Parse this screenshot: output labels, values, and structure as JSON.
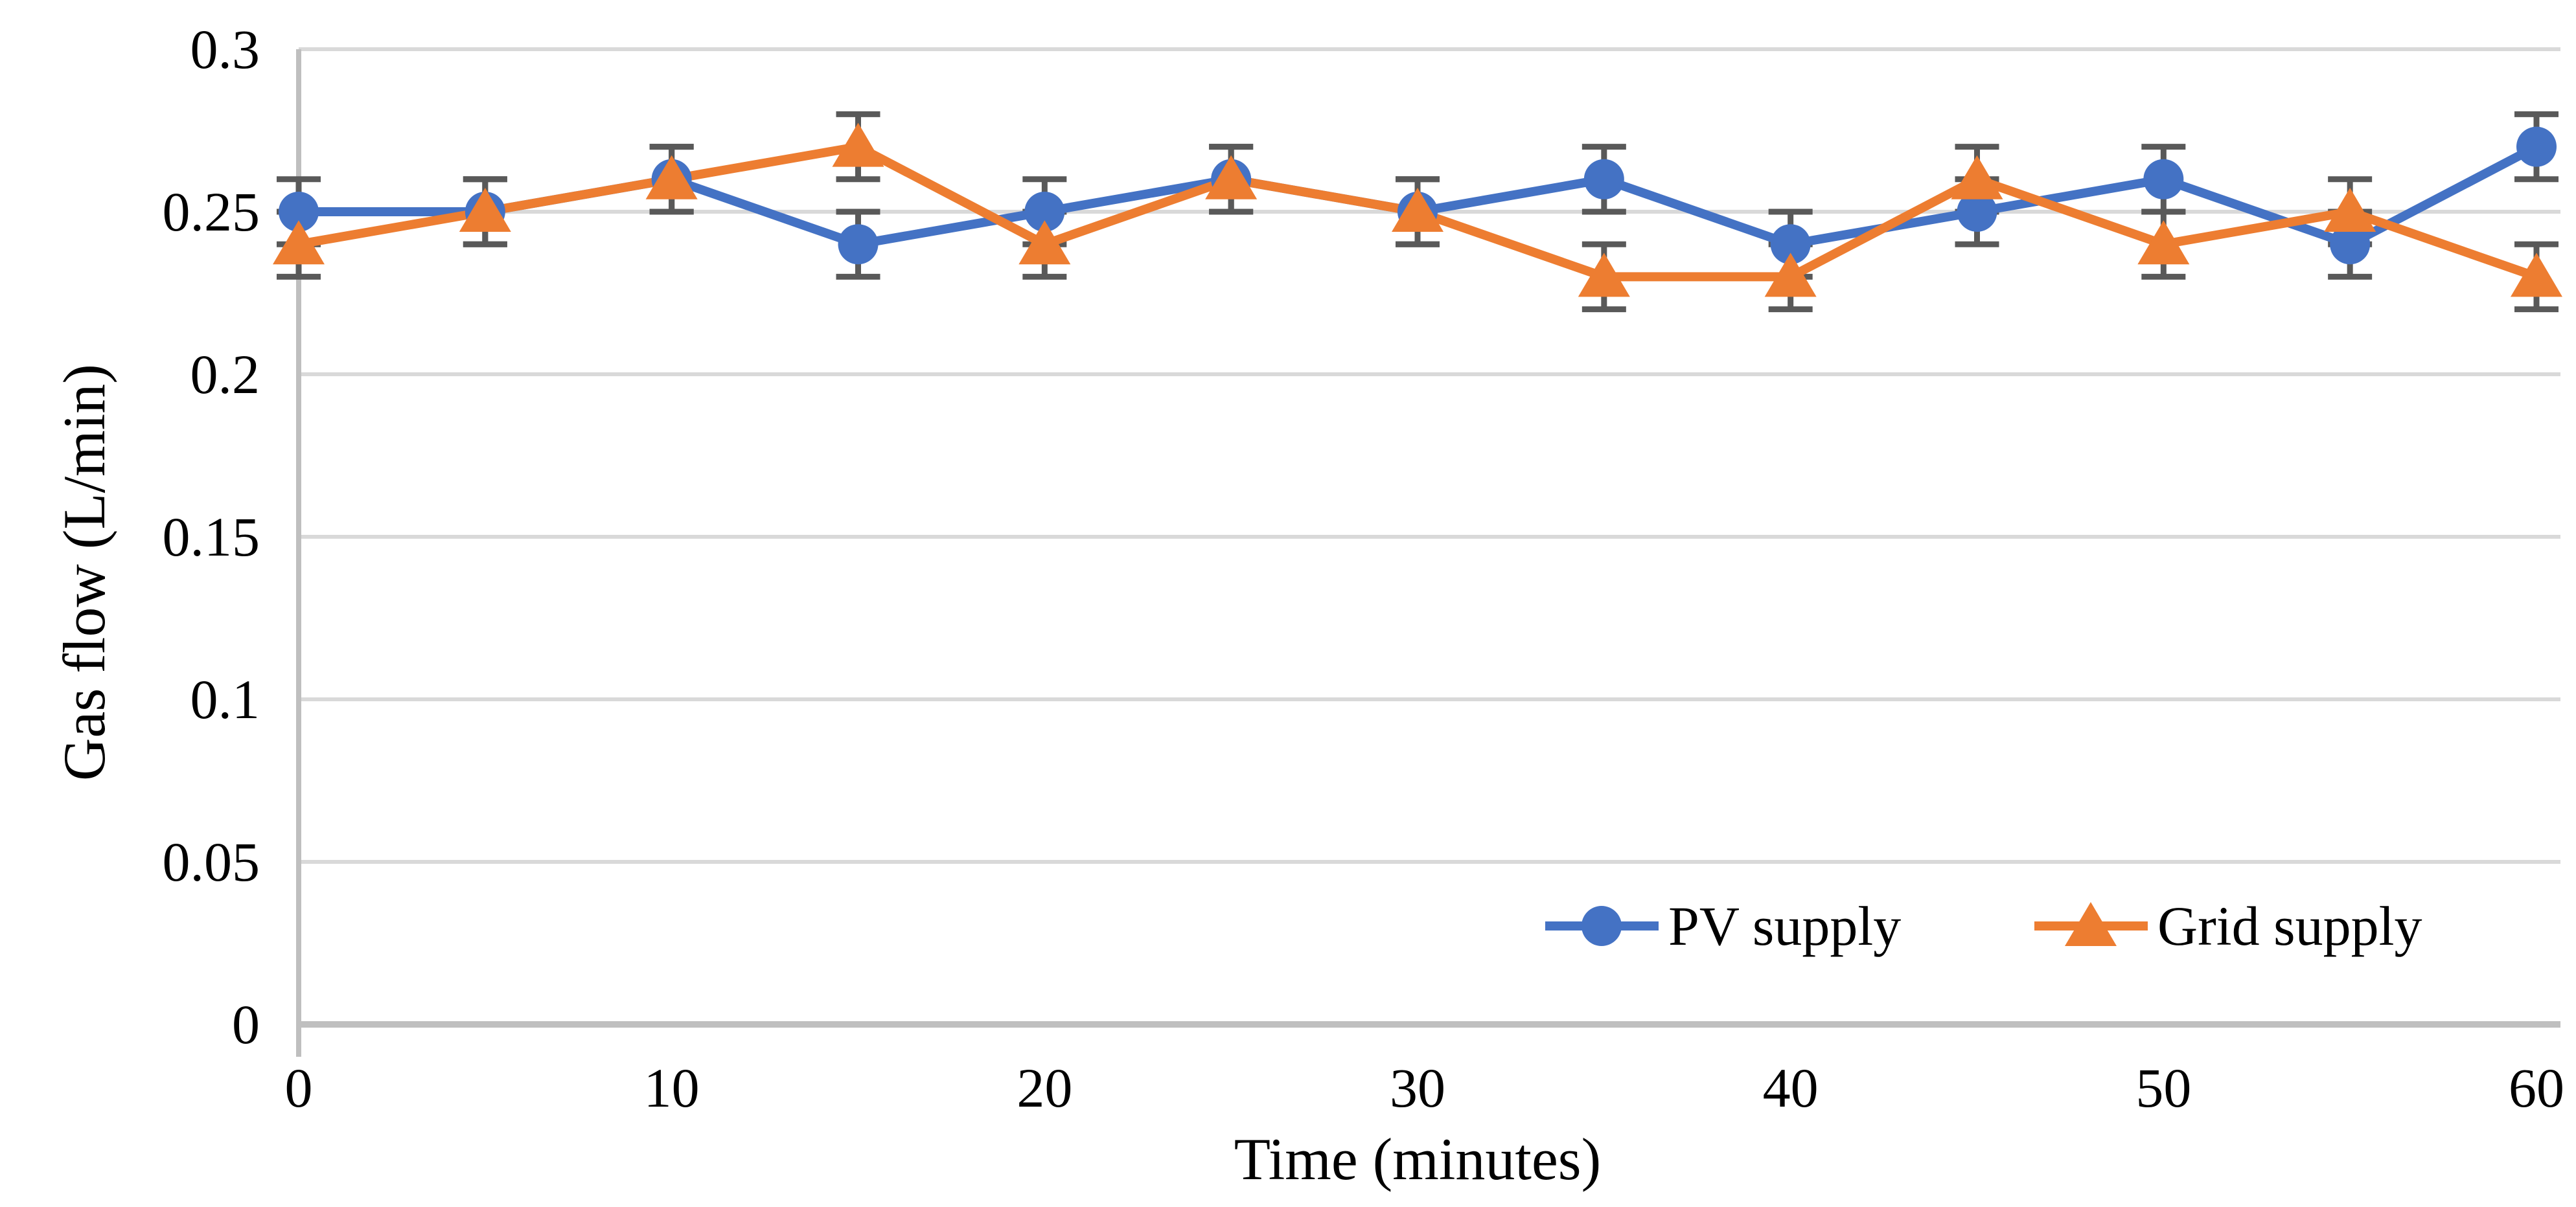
{
  "chart_data": {
    "type": "line",
    "title": "",
    "xlabel": "Time (minutes)",
    "ylabel": "Gas flow (L/min)",
    "x": [
      0,
      5,
      10,
      15,
      20,
      25,
      30,
      35,
      40,
      45,
      50,
      55,
      60
    ],
    "x_tick_values": [
      0,
      10,
      20,
      30,
      40,
      50,
      60
    ],
    "x_tick_labels": [
      "0",
      "10",
      "20",
      "30",
      "40",
      "50",
      "60"
    ],
    "y_ticks": [
      0,
      0.05,
      0.1,
      0.15,
      0.2,
      0.25,
      0.3
    ],
    "y_tick_labels": [
      "0",
      "0.05",
      "0.1",
      "0.15",
      "0.2",
      "0.25",
      "0.3"
    ],
    "xlim": [
      0,
      60
    ],
    "ylim": [
      0,
      0.3
    ],
    "grid": "horizontal-only",
    "legend_position": "inside-bottom-right",
    "error_bar_plus_minus": 0.01,
    "series": [
      {
        "name": "PV supply",
        "marker": "circle",
        "color": "#4472C4",
        "values": [
          0.25,
          0.25,
          0.26,
          0.24,
          0.25,
          0.26,
          0.25,
          0.26,
          0.24,
          0.25,
          0.26,
          0.24,
          0.27
        ]
      },
      {
        "name": "Grid supply",
        "marker": "triangle",
        "color": "#ED7D31",
        "values": [
          0.24,
          0.25,
          0.26,
          0.27,
          0.24,
          0.26,
          0.25,
          0.23,
          0.23,
          0.26,
          0.24,
          0.25,
          0.23
        ]
      }
    ]
  },
  "colors": {
    "pv_series": "#4472C4",
    "grid_series": "#ED7D31",
    "gridline": "#D9D9D9",
    "axis_line": "#BFBFBF",
    "error_bar": "#595959",
    "text": "#000000",
    "background": "#FFFFFF"
  },
  "legend": {
    "items": [
      {
        "label": "PV supply"
      },
      {
        "label": "Grid supply"
      }
    ]
  }
}
